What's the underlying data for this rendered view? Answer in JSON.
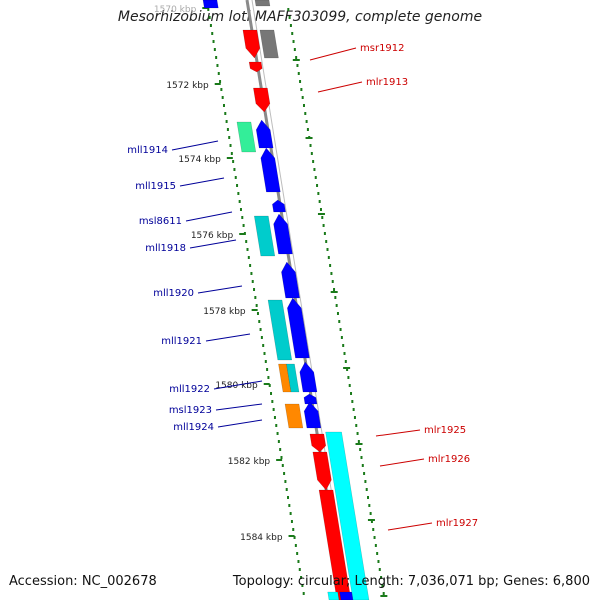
{
  "title": "Mesorhizobium loti MAFF303099, complete genome",
  "footer": {
    "accession": "Accession: NC_002678",
    "summary": "Topology: circular; Length: 7,036,071 bp; Genes: 6,800"
  },
  "colors": {
    "backbone": "#8a8a8a",
    "tick": "#1a7a1a",
    "label_forward": "#cc0000",
    "label_reverse": "#000099",
    "red": "#ff0000",
    "blue": "#0000ff",
    "cyan": "#00ffff",
    "teal": "#00cccc",
    "green": "#33ee99",
    "orange": "#ff8800",
    "grey": "#777777"
  },
  "kbp_labels": [
    {
      "text": "1570 kbp",
      "faded": true
    },
    {
      "text": "1572 kbp"
    },
    {
      "text": "1574 kbp"
    },
    {
      "text": "1576 kbp"
    },
    {
      "text": "1578 kbp"
    },
    {
      "text": "1580 kbp"
    },
    {
      "text": "1582 kbp"
    },
    {
      "text": "1584 kbp"
    }
  ],
  "gene_labels": {
    "forward": [
      "msr1912",
      "mlr1913",
      "mlr1925",
      "mlr1926",
      "mlr1927"
    ],
    "reverse": [
      "mll1914",
      "mll1915",
      "msl8611",
      "mll1918",
      "mll1920",
      "mll1921",
      "mll1922",
      "msl1923",
      "mll1924"
    ]
  }
}
